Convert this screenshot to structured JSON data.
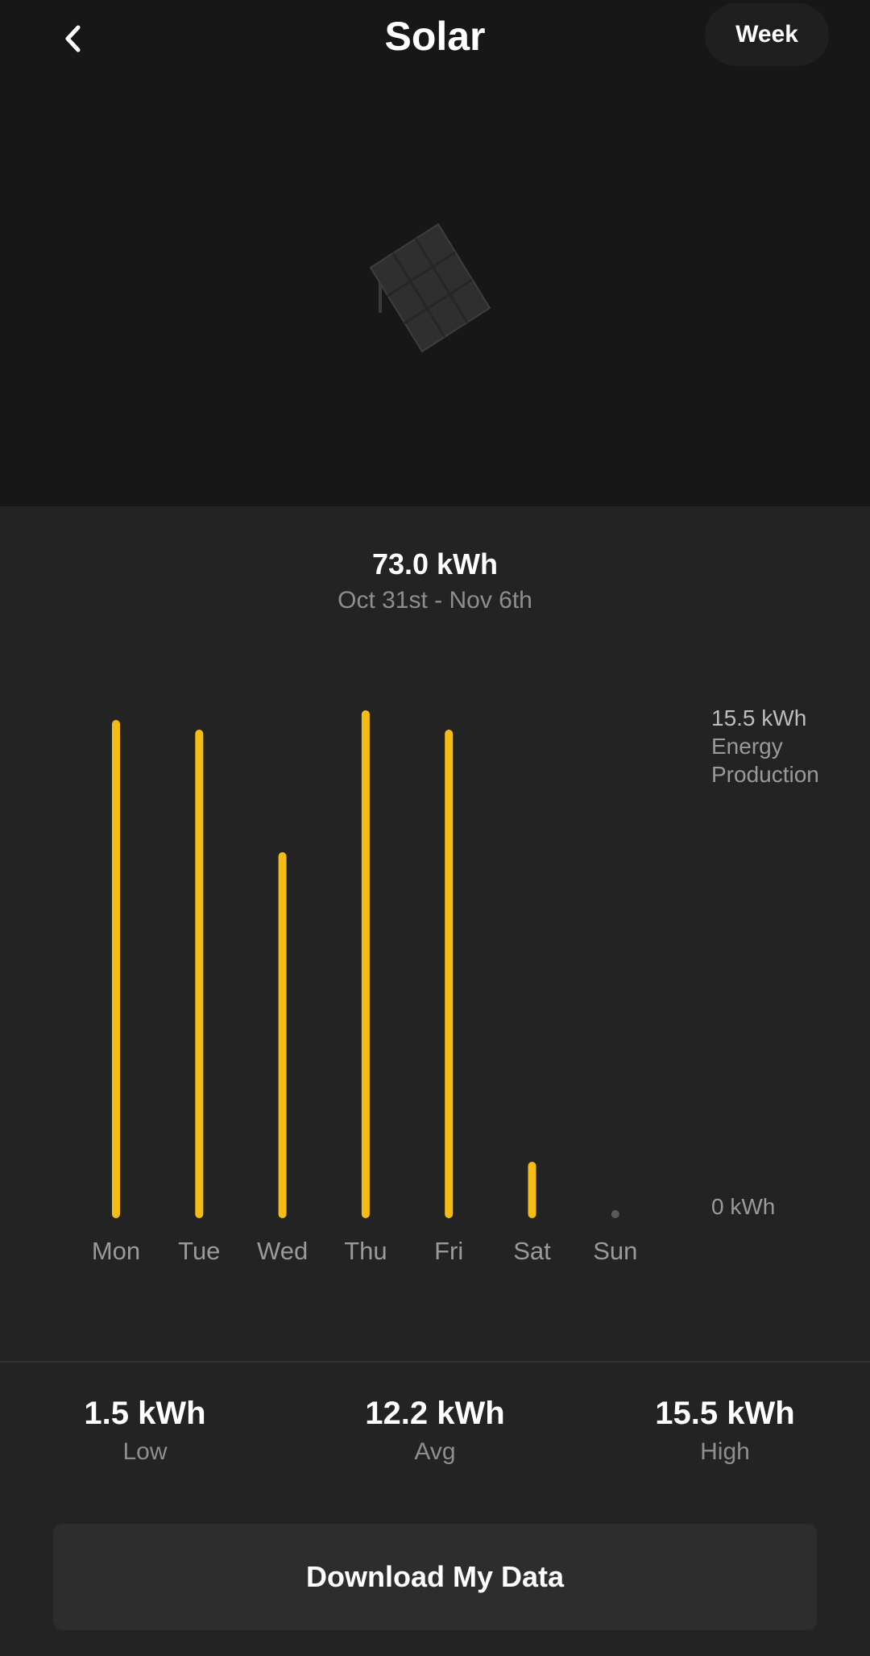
{
  "header": {
    "title": "Solar",
    "period_button": "Week"
  },
  "summary": {
    "total": "73.0 kWh",
    "range": "Oct 31st - Nov 6th"
  },
  "chart_data": {
    "type": "bar",
    "categories": [
      "Mon",
      "Tue",
      "Wed",
      "Thu",
      "Fri",
      "Sat",
      "Sun"
    ],
    "values": [
      15.2,
      14.9,
      11.1,
      15.5,
      14.9,
      1.5,
      0.0
    ],
    "ylim": [
      0,
      15.5
    ],
    "y_top_label": "15.5 kWh",
    "y_bottom_label": "0 kWh",
    "y_caption_line1": "Energy",
    "y_caption_line2": "Production",
    "bar_color": "#F5BC14",
    "zero_marker_color": "#5a5a5a"
  },
  "stats": {
    "low_value": "1.5 kWh",
    "low_label": "Low",
    "avg_value": "12.2 kWh",
    "avg_label": "Avg",
    "high_value": "15.5 kWh",
    "high_label": "High"
  },
  "actions": {
    "download_label": "Download My Data"
  },
  "colors": {
    "background": "#232323",
    "header_background": "#171717",
    "accent": "#F5BC14"
  },
  "icons": {
    "back": "chevron-left-icon",
    "panel": "solar-panel-icon"
  }
}
